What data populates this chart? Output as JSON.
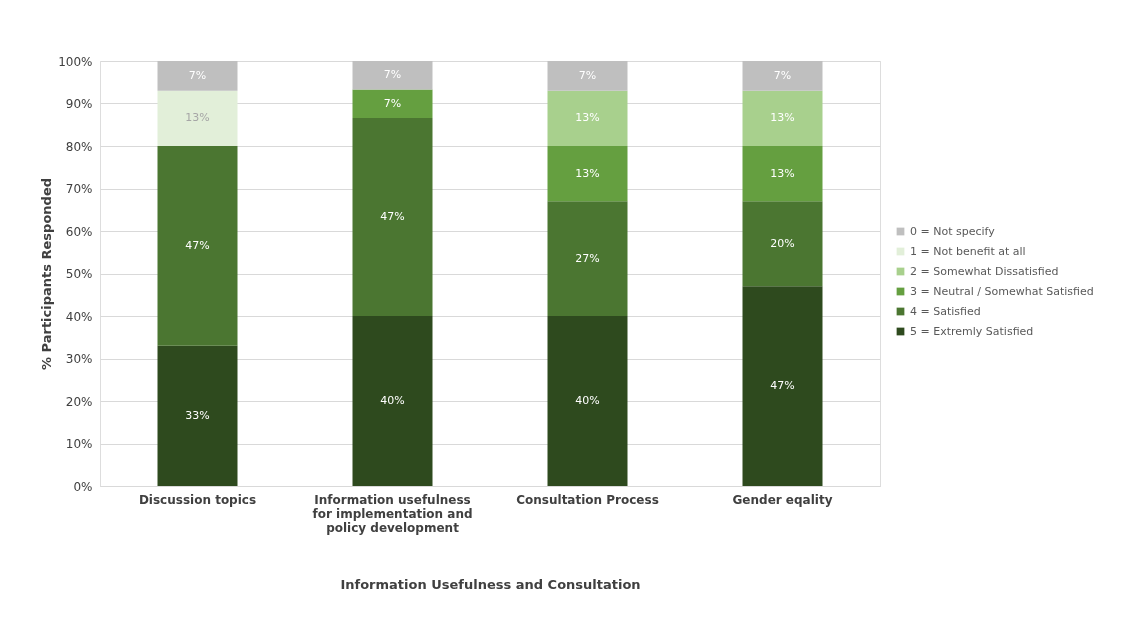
{
  "chart_data": {
    "type": "bar",
    "stacked": true,
    "xlabel": "Information Usefulness and Consultation",
    "ylabel": "% Participants Responded",
    "categories": [
      "Discussion topics",
      "Information usefulness for implementation and policy development",
      "Consultation Process",
      "Gender eqality"
    ],
    "series": [
      {
        "name": "5 = Extremly Satisfied",
        "color": "#2e4a1e",
        "values": [
          33,
          40,
          40,
          47
        ],
        "value_labels": [
          "33%",
          "40%",
          "40%",
          "47%"
        ]
      },
      {
        "name": "4 = Satisfied",
        "color": "#4b7631",
        "values": [
          47,
          46.6,
          27,
          20
        ],
        "value_labels": [
          "47%",
          "47%",
          "27%",
          "20%"
        ]
      },
      {
        "name": "3 = Neutral / Somewhat Satisfied",
        "color": "#659f40",
        "values": [
          null,
          6.7,
          13,
          13
        ],
        "value_labels": [
          null,
          "7%",
          "13%",
          "13%"
        ]
      },
      {
        "name": "2 = Somewhat Dissatisfied",
        "color": "#a8d08d",
        "values": [
          null,
          null,
          13,
          13
        ],
        "value_labels": [
          null,
          null,
          "13%",
          "13%"
        ]
      },
      {
        "name": "1 = Not benefit at all",
        "color": "#e2efd9",
        "values": [
          13,
          null,
          null,
          null
        ],
        "value_labels": [
          "13%",
          null,
          null,
          null
        ]
      },
      {
        "name": "0 = Not specify",
        "color": "#bfbfbf",
        "values": [
          7,
          6.7,
          7,
          7
        ],
        "value_labels": [
          "7%",
          "7%",
          "7%",
          "7%"
        ]
      }
    ],
    "ylim": [
      0,
      100
    ],
    "yticks": [
      {
        "value": 0,
        "label": "0%"
      },
      {
        "value": 10,
        "label": "10%"
      },
      {
        "value": 20,
        "label": "20%"
      },
      {
        "value": 30,
        "label": "30%"
      },
      {
        "value": 40,
        "label": "40%"
      },
      {
        "value": 50,
        "label": "50%"
      },
      {
        "value": 60,
        "label": "60%"
      },
      {
        "value": 70,
        "label": "70%"
      },
      {
        "value": 80,
        "label": "80%"
      },
      {
        "value": 90,
        "label": "90%"
      },
      {
        "value": 100,
        "label": "100%"
      }
    ],
    "grid": "y",
    "legend": "right"
  }
}
